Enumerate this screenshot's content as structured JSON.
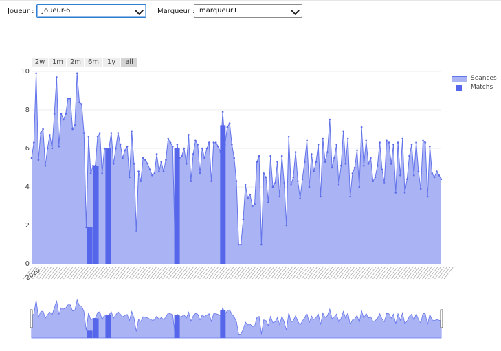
{
  "filters": {
    "player_label": "Joueur :",
    "player_value": "Joueur-6",
    "marker_label": "Marqueur :",
    "marker_value": "marqueur1"
  },
  "range_selector": [
    {
      "label": "2w",
      "active": false
    },
    {
      "label": "1m",
      "active": false
    },
    {
      "label": "2m",
      "active": false
    },
    {
      "label": "6m",
      "active": false
    },
    {
      "label": "1y",
      "active": false
    },
    {
      "label": "all",
      "active": true
    }
  ],
  "legend": [
    {
      "name": "Seances",
      "color": "#aab4f5",
      "line": "#6474ea"
    },
    {
      "name": "Matchs",
      "color": "#5566ea"
    }
  ],
  "chart_data": {
    "type": "area",
    "yaxis": {
      "range": [
        0,
        10
      ],
      "ticks": [
        0,
        2,
        4,
        6,
        8,
        10
      ]
    },
    "xaxis": {
      "first_tick_label": "2020",
      "ticks_overlapping": true
    },
    "rangeslider": true,
    "series": [
      {
        "name": "Seances",
        "type": "area",
        "y": [
          5.5,
          6.3,
          9.9,
          5.4,
          6.8,
          7.0,
          5.1,
          6.0,
          6.7,
          6.0,
          7.8,
          9.7,
          6.1,
          7.8,
          7.5,
          7.8,
          8.6,
          8.6,
          7.0,
          7.2,
          9.9,
          8.4,
          8.3,
          6.8,
          1.9,
          6.6,
          4.7,
          5.1,
          5.1,
          6.6,
          6.8,
          4.7,
          6.0,
          5.9,
          6.0,
          6.8,
          5.2,
          6.0,
          6.8,
          6.2,
          5.5,
          5.9,
          6.1,
          4.5,
          6.9,
          5.2,
          1.7,
          4.8,
          4.3,
          5.5,
          5.4,
          5.2,
          4.9,
          4.6,
          4.7,
          5.7,
          4.8,
          5.3,
          4.8,
          5.4,
          6.5,
          6.3,
          6.1,
          1.0,
          6.2,
          5.5,
          5.6,
          6.0,
          5.2,
          6.7,
          4.3,
          5.7,
          6.4,
          6.2,
          4.7,
          6.0,
          5.5,
          6.0,
          6.3,
          4.3,
          6.3,
          6.3,
          6.1,
          5.8,
          7.9,
          6.2,
          7.1,
          7.3,
          6.2,
          5.5,
          4.3,
          1.0,
          1.0,
          2.3,
          4.1,
          3.4,
          3.6,
          3.0,
          3.1,
          5.3,
          5.6,
          1.0,
          4.7,
          4.5,
          3.2,
          5.6,
          4.0,
          4.2,
          5.3,
          3.5,
          5.6,
          4.2,
          2.0,
          6.6,
          4.1,
          4.5,
          5.8,
          4.3,
          3.4,
          4.4,
          5.3,
          6.4,
          4.0,
          5.7,
          4.8,
          5.3,
          6.2,
          3.5,
          6.5,
          5.3,
          5.8,
          7.5,
          5.0,
          5.5,
          6.2,
          4.1,
          5.1,
          6.9,
          5.2,
          6.5,
          3.5,
          4.7,
          5.0,
          5.9,
          4.0,
          7.1,
          5.1,
          6.4,
          5.2,
          5.5,
          4.3,
          4.5,
          5.1,
          6.3,
          4.9,
          4.2,
          6.4,
          6.3,
          5.2,
          6.2,
          3.7,
          6.3,
          4.6,
          6.5,
          3.7,
          4.4,
          5.6,
          6.2,
          4.6,
          6.3,
          4.8,
          3.9,
          6.4,
          6.3,
          3.5,
          6.1,
          4.7,
          4.5,
          4.8,
          4.6,
          4.4
        ]
      },
      {
        "name": "Matchs",
        "type": "bar",
        "bars": [
          {
            "pos": 0.142,
            "value": 1.9
          },
          {
            "pos": 0.157,
            "value": 5.1
          },
          {
            "pos": 0.187,
            "value": 6.0
          },
          {
            "pos": 0.355,
            "value": 6.0
          },
          {
            "pos": 0.467,
            "value": 7.2
          }
        ]
      }
    ]
  }
}
